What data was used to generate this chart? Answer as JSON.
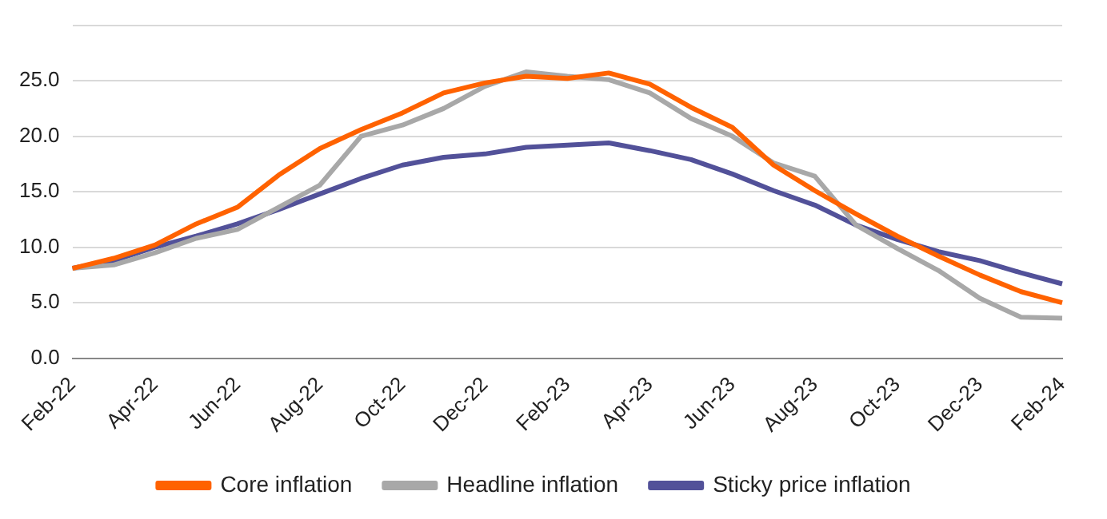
{
  "chart_data": {
    "type": "line",
    "categories": [
      "Feb-22",
      null,
      "Apr-22",
      null,
      "Jun-22",
      null,
      "Aug-22",
      null,
      "Oct-22",
      null,
      "Dec-22",
      null,
      "Feb-23",
      null,
      "Apr-23",
      null,
      "Jun-23",
      null,
      "Aug-23",
      null,
      "Oct-23",
      null,
      "Dec-23",
      null,
      "Feb-24"
    ],
    "series": [
      {
        "name": "Core inflation",
        "color": "#ff6200",
        "values": [
          8.1,
          9.0,
          10.2,
          12.1,
          13.6,
          16.5,
          18.9,
          20.6,
          22.1,
          23.9,
          24.8,
          25.4,
          25.2,
          25.7,
          24.7,
          22.6,
          20.8,
          17.4,
          15.1,
          13.0,
          11.0,
          9.2,
          7.5,
          6.0,
          5.0
        ]
      },
      {
        "name": "Headline inflation",
        "color": "#a8a8a8",
        "values": [
          8.1,
          8.4,
          9.5,
          10.8,
          11.6,
          13.6,
          15.6,
          20.0,
          21.0,
          22.5,
          24.5,
          25.8,
          25.4,
          25.1,
          23.9,
          21.6,
          20.0,
          17.6,
          16.4,
          12.0,
          9.9,
          7.9,
          5.4,
          3.7,
          3.6
        ]
      },
      {
        "name": "Sticky price inflation",
        "color": "#525199",
        "values": [
          8.1,
          8.8,
          10.0,
          11.0,
          12.1,
          13.4,
          14.8,
          16.2,
          17.4,
          18.1,
          18.4,
          19.0,
          19.2,
          19.4,
          18.7,
          17.9,
          16.6,
          15.1,
          13.8,
          12.0,
          10.7,
          9.6,
          8.8,
          7.7,
          6.7
        ]
      }
    ],
    "ylim": [
      0,
      30
    ],
    "yticks": [
      {
        "value": 0,
        "label": "0.0"
      },
      {
        "value": 5,
        "label": "5.0"
      },
      {
        "value": 10,
        "label": "10.0"
      },
      {
        "value": 15,
        "label": "15.0"
      },
      {
        "value": 20,
        "label": "20.0"
      },
      {
        "value": 25,
        "label": "25.0"
      },
      {
        "value": 30,
        "label": null
      }
    ],
    "grid": "y",
    "legend": "bottom",
    "marker": "none",
    "line_style": "solid"
  }
}
